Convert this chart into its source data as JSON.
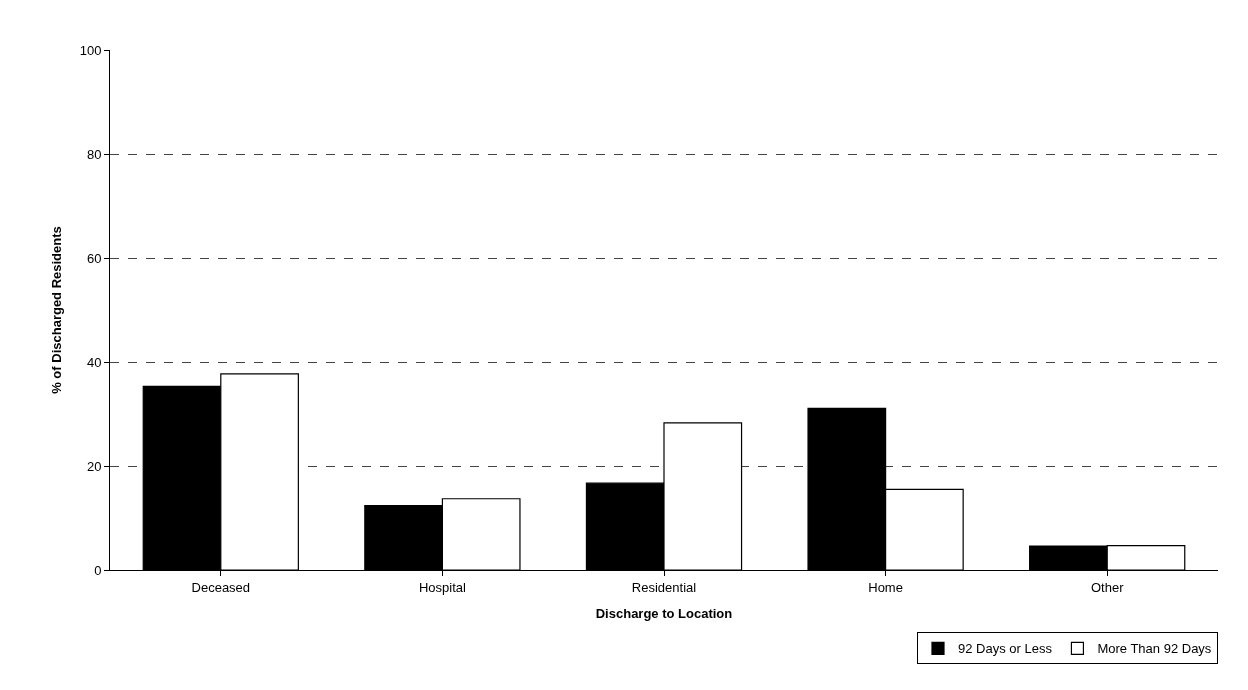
{
  "chart_data": {
    "type": "bar",
    "xlabel": "Discharge to Location",
    "ylabel": "% of Discharged Residents",
    "categories": [
      "Deceased",
      "Hospital",
      "Residential",
      "Home",
      "Other"
    ],
    "series": [
      {
        "name": "92 Days or Less",
        "color": "#000000",
        "values": [
          35.3,
          12.4,
          16.7,
          31.1,
          4.6
        ]
      },
      {
        "name": "More Than 92 Days",
        "color": "#ffffff",
        "values": [
          37.7,
          13.7,
          28.3,
          15.5,
          4.7
        ]
      }
    ],
    "ylim": [
      0,
      100
    ],
    "yticks": [
      0,
      20,
      40,
      60,
      80,
      100
    ],
    "grid": "y",
    "legend": "bottom right"
  }
}
